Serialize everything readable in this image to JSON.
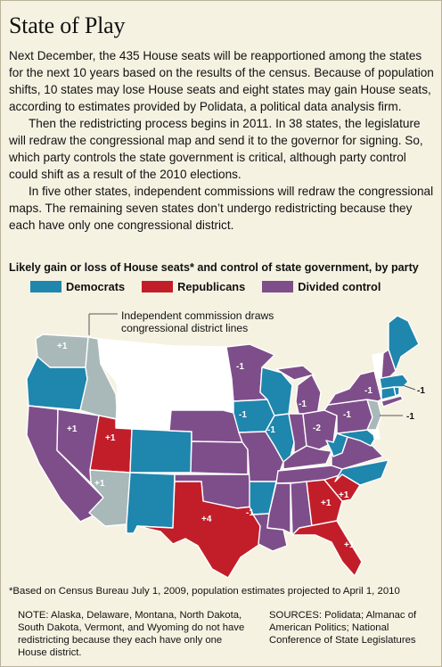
{
  "header": {
    "title": "State of Play"
  },
  "intro": {
    "paragraphs": [
      "Next December, the 435 House seats will be reapportioned among the states for the next 10 years based on the results of the census. Because of population shifts, 10 states may lose House seats and eight states may gain House seats, according to estimates provided by Polidata, a political data analysis firm.",
      "Then the redistricting process begins in 2011. In 38 states, the legislature will redraw the congressional map and send it to the governor for signing. So, which party controls the state government is critical, although party control could shift as a result of the 2010 elections.",
      "In five other states, independent commissions will redraw the congressional maps. The remaining seven states don’t undergo redistricting because they each have only one congressional district."
    ]
  },
  "map": {
    "heading": "Likely gain or loss of House seats* and control of state government, by party",
    "legend": [
      {
        "label": "Democrats",
        "color": "#1f86ad",
        "category": "democrats"
      },
      {
        "label": "Republicans",
        "color": "#c21e2a",
        "category": "republicans"
      },
      {
        "label": "Divided control",
        "color": "#7e4e8a",
        "category": "divided"
      }
    ],
    "commission_label": "Independent commission draws congressional district lines",
    "category_colors": {
      "democrats": "#1f86ad",
      "republicans": "#c21e2a",
      "divided": "#7e4e8a",
      "commission": "#a9b8b8",
      "none": "#ffffff"
    },
    "states": [
      {
        "abbr": "WA",
        "control": "commission",
        "seat_change": "+1"
      },
      {
        "abbr": "OR",
        "control": "democrats",
        "seat_change": ""
      },
      {
        "abbr": "CA",
        "control": "divided",
        "seat_change": ""
      },
      {
        "abbr": "NV",
        "control": "divided",
        "seat_change": "+1"
      },
      {
        "abbr": "ID",
        "control": "commission",
        "seat_change": ""
      },
      {
        "abbr": "MT",
        "control": "none",
        "seat_change": ""
      },
      {
        "abbr": "WY",
        "control": "none",
        "seat_change": ""
      },
      {
        "abbr": "UT",
        "control": "republicans",
        "seat_change": "+1"
      },
      {
        "abbr": "AZ",
        "control": "commission",
        "seat_change": "+1"
      },
      {
        "abbr": "CO",
        "control": "democrats",
        "seat_change": ""
      },
      {
        "abbr": "NM",
        "control": "democrats",
        "seat_change": ""
      },
      {
        "abbr": "ND",
        "control": "none",
        "seat_change": ""
      },
      {
        "abbr": "SD",
        "control": "none",
        "seat_change": ""
      },
      {
        "abbr": "NE",
        "control": "divided",
        "seat_change": ""
      },
      {
        "abbr": "KS",
        "control": "divided",
        "seat_change": ""
      },
      {
        "abbr": "OK",
        "control": "divided",
        "seat_change": ""
      },
      {
        "abbr": "TX",
        "control": "republicans",
        "seat_change": "+4"
      },
      {
        "abbr": "MN",
        "control": "divided",
        "seat_change": "-1"
      },
      {
        "abbr": "IA",
        "control": "democrats",
        "seat_change": "-1"
      },
      {
        "abbr": "MO",
        "control": "divided",
        "seat_change": ""
      },
      {
        "abbr": "AR",
        "control": "democrats",
        "seat_change": ""
      },
      {
        "abbr": "LA",
        "control": "divided",
        "seat_change": "-1"
      },
      {
        "abbr": "WI",
        "control": "democrats",
        "seat_change": ""
      },
      {
        "abbr": "IL",
        "control": "democrats",
        "seat_change": "-1"
      },
      {
        "abbr": "MS",
        "control": "divided",
        "seat_change": ""
      },
      {
        "abbr": "MI",
        "control": "divided",
        "seat_change": "-1"
      },
      {
        "abbr": "IN",
        "control": "divided",
        "seat_change": ""
      },
      {
        "abbr": "KY",
        "control": "divided",
        "seat_change": ""
      },
      {
        "abbr": "TN",
        "control": "divided",
        "seat_change": ""
      },
      {
        "abbr": "AL",
        "control": "divided",
        "seat_change": ""
      },
      {
        "abbr": "OH",
        "control": "divided",
        "seat_change": "-2"
      },
      {
        "abbr": "GA",
        "control": "republicans",
        "seat_change": "+1"
      },
      {
        "abbr": "FL",
        "control": "republicans",
        "seat_change": "+1"
      },
      {
        "abbr": "SC",
        "control": "republicans",
        "seat_change": "+1"
      },
      {
        "abbr": "NC",
        "control": "democrats",
        "seat_change": ""
      },
      {
        "abbr": "WV",
        "control": "democrats",
        "seat_change": ""
      },
      {
        "abbr": "VA",
        "control": "divided",
        "seat_change": ""
      },
      {
        "abbr": "PA",
        "control": "divided",
        "seat_change": "-1"
      },
      {
        "abbr": "NY",
        "control": "divided",
        "seat_change": "-1"
      },
      {
        "abbr": "NJ",
        "control": "commission",
        "seat_change": "-1"
      },
      {
        "abbr": "MD",
        "control": "democrats",
        "seat_change": ""
      },
      {
        "abbr": "DE",
        "control": "none",
        "seat_change": ""
      },
      {
        "abbr": "VT",
        "control": "none",
        "seat_change": ""
      },
      {
        "abbr": "NH",
        "control": "divided",
        "seat_change": ""
      },
      {
        "abbr": "ME",
        "control": "democrats",
        "seat_change": ""
      },
      {
        "abbr": "MA",
        "control": "democrats",
        "seat_change": "-1"
      },
      {
        "abbr": "CT",
        "control": "democrats",
        "seat_change": ""
      },
      {
        "abbr": "RI",
        "control": "democrats",
        "seat_change": ""
      }
    ]
  },
  "footer": {
    "footnote": "*Based on Census Bureau July 1, 2009, population estimates projected to April 1, 2010",
    "note": "NOTE: Alaska, Delaware, Montana, North Dakota, South Dakota, Vermont, and Wyoming do not have redistricting because they each have only one House district.",
    "sources": "SOURCES: Polidata; Almanac of American Politics; National Conference of State Legislatures"
  }
}
